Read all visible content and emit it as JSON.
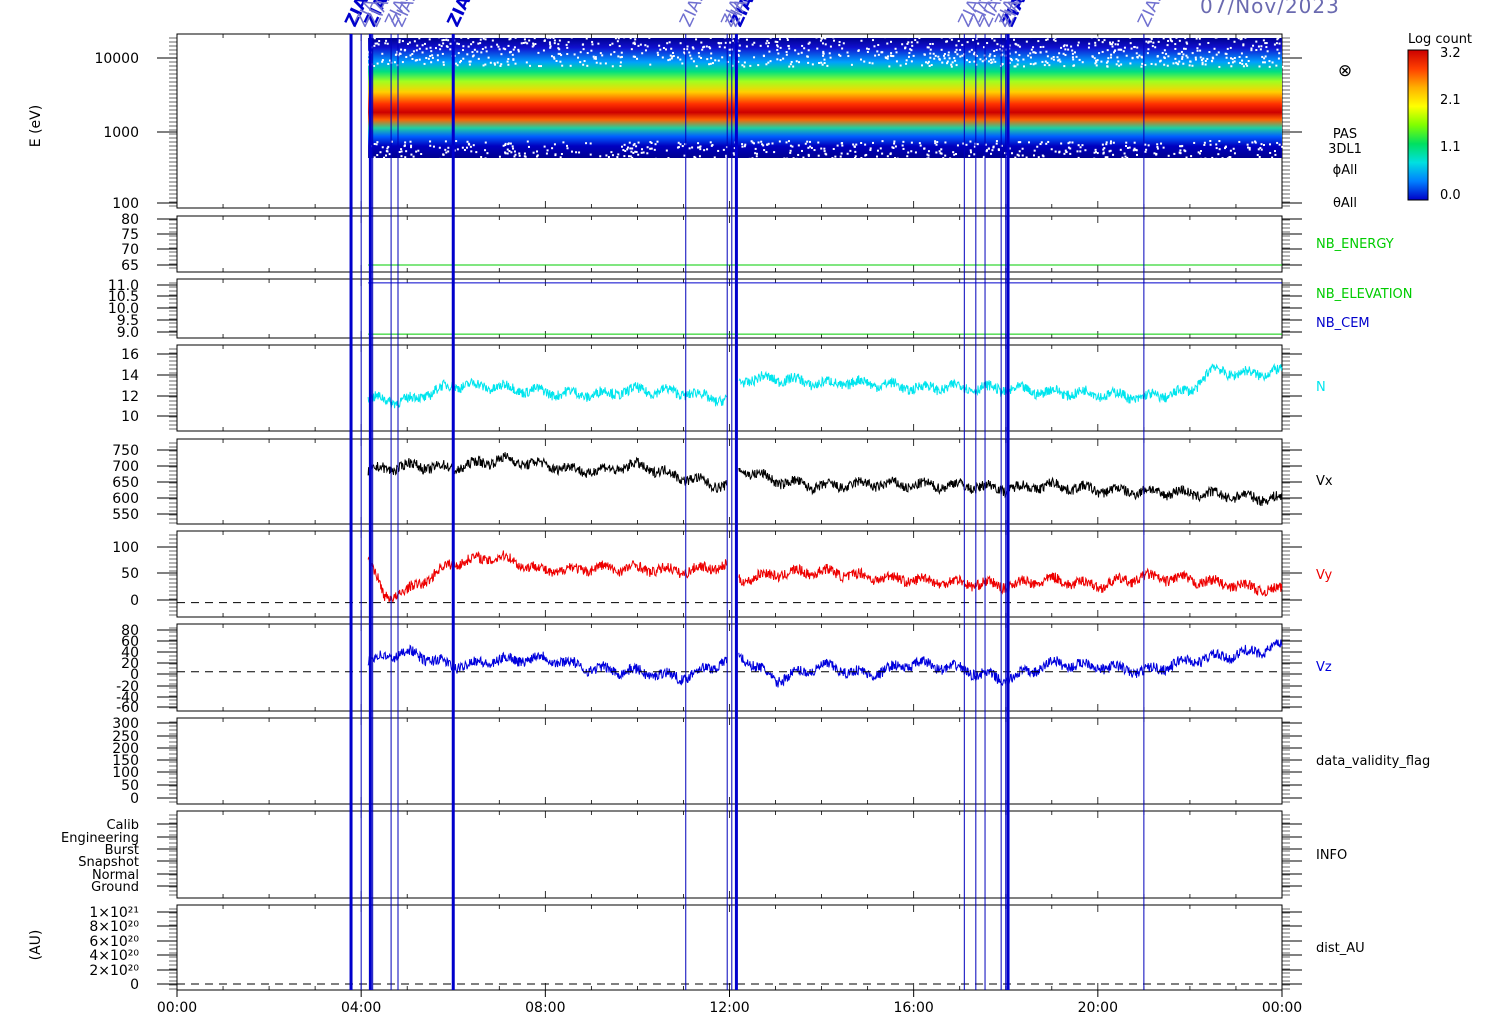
{
  "date_label": "07/Nov/2023",
  "colorbar": {
    "title": "Log count",
    "ticks": [
      "3.2",
      "2.1",
      "1.1",
      "0.0"
    ],
    "colors": [
      "#cc0000",
      "#ff4000",
      "#ffb000",
      "#ffff00",
      "#80ff00",
      "#00e060",
      "#00e0e0",
      "#0080ff",
      "#0000c8"
    ]
  },
  "x_ticks": [
    "00:00",
    "04:00",
    "08:00",
    "12:00",
    "16:00",
    "20:00",
    "00:00"
  ],
  "events": {
    "label": "ZIAS",
    "hours_thick": [
      3.78,
      4.2,
      6.0,
      12.15,
      18.05
    ],
    "hours_thin": [
      4.0,
      4.25,
      4.65,
      4.8,
      11.05,
      11.95,
      12.05,
      17.1,
      17.35,
      17.55,
      17.9,
      18.0,
      21.0
    ]
  },
  "chart_data": [
    {
      "type": "heatmap",
      "ylabel": "E (eV)",
      "y_ticks": [
        "10000",
        "1000",
        "100"
      ],
      "yscale": "log",
      "ylim": [
        100,
        20000
      ],
      "xlim_hours": [
        0,
        24
      ],
      "data_start_hour": 4.15,
      "peak_energy_ev": [
        2400,
        2600,
        2500,
        2000,
        1800
      ],
      "side_labels": [
        "PAS",
        "3DL1",
        "ϕAll",
        "θAll"
      ],
      "side_symbol": "⊗"
    },
    {
      "type": "line",
      "series": [
        {
          "name": "NB_ENERGY",
          "color": "#00cc00",
          "value": 63.5
        }
      ],
      "y_ticks": [
        "80",
        "75",
        "70",
        "65"
      ],
      "ylim": [
        61,
        81
      ]
    },
    {
      "type": "line",
      "series": [
        {
          "name": "NB_ELEVATION",
          "color": "#00cc00",
          "value": 9.0
        },
        {
          "name": "NB_CEM",
          "color": "#0000cc",
          "value": 11.0
        }
      ],
      "y_ticks": [
        "11.0",
        "10.5",
        "10.0",
        "9.5",
        "9.0"
      ],
      "ylim": [
        8.85,
        11.15
      ]
    },
    {
      "type": "line",
      "series": [
        {
          "name": "N",
          "color": "#00e5ee",
          "x": [
            4.15,
            5,
            6,
            7,
            8,
            9,
            10,
            11,
            11.95,
            12.2,
            13,
            14,
            15,
            16,
            17,
            18,
            19,
            20,
            21,
            22,
            22.5,
            23,
            24
          ],
          "y": [
            11.5,
            11.3,
            12.8,
            12.6,
            12.1,
            11.9,
            12.3,
            12.1,
            11.3,
            13.2,
            13.4,
            12.9,
            13.0,
            12.5,
            12.6,
            12.4,
            12.1,
            12.0,
            11.6,
            12.2,
            14.3,
            13.8,
            14.0
          ]
        }
      ],
      "y_ticks": [
        "16",
        "14",
        "12",
        "10"
      ],
      "ylim": [
        8.5,
        16.5
      ]
    },
    {
      "type": "line",
      "series": [
        {
          "name": "Vx",
          "color": "#000000",
          "x": [
            4.15,
            5,
            6,
            7,
            8,
            9,
            10,
            11,
            11.95,
            12.2,
            13,
            14,
            15,
            16,
            17,
            18,
            19,
            20,
            21,
            22,
            23,
            24
          ],
          "y": [
            670,
            690,
            680,
            710,
            690,
            670,
            690,
            650,
            620,
            680,
            640,
            620,
            630,
            625,
            625,
            615,
            625,
            610,
            605,
            600,
            590,
            580
          ]
        }
      ],
      "y_ticks": [
        "750",
        "700",
        "650",
        "600",
        "550"
      ],
      "ylim": [
        500,
        775
      ]
    },
    {
      "type": "line",
      "series": [
        {
          "name": "Vy",
          "color": "#ee0000",
          "x": [
            4.15,
            4.5,
            5,
            6,
            7,
            8,
            9,
            10,
            11,
            11.95,
            12.2,
            13,
            14,
            15,
            16,
            17,
            18,
            19,
            20,
            21,
            22,
            23,
            24
          ],
          "y": [
            80,
            10,
            20,
            70,
            80,
            55,
            60,
            60,
            55,
            65,
            40,
            50,
            55,
            45,
            40,
            35,
            30,
            40,
            30,
            45,
            40,
            30,
            20
          ]
        }
      ],
      "y_ticks": [
        "100",
        "50",
        "0"
      ],
      "ylim": [
        -25,
        125
      ]
    },
    {
      "type": "line",
      "series": [
        {
          "name": "Vz",
          "color": "#0000dd",
          "x": [
            4.15,
            5,
            6,
            7,
            8,
            9,
            10,
            11,
            11.95,
            12.2,
            13,
            14,
            15,
            16,
            17,
            18,
            19,
            20,
            21,
            22,
            23,
            24
          ],
          "y": [
            20,
            35,
            10,
            20,
            25,
            5,
            0,
            -10,
            20,
            30,
            -15,
            10,
            -5,
            15,
            5,
            -15,
            15,
            10,
            0,
            20,
            30,
            45
          ]
        }
      ],
      "y_ticks": [
        "80",
        "60",
        "40",
        "20",
        "0",
        "-20",
        "-40",
        "-60"
      ],
      "ylim": [
        -70,
        85
      ]
    },
    {
      "type": "line",
      "series": [
        {
          "name": "data_validity_flag"
        }
      ],
      "y_ticks": [
        "300",
        "250",
        "200",
        "150",
        "100",
        "50",
        "0"
      ],
      "ylim": [
        -10,
        320
      ]
    },
    {
      "type": "line",
      "series": [
        {
          "name": "INFO"
        }
      ],
      "y_ticks": [
        "Calib",
        "Engineering",
        "Burst",
        "Snapshot",
        "Normal",
        "Ground"
      ]
    },
    {
      "type": "line",
      "series": [
        {
          "name": "dist_AU"
        }
      ],
      "ylabel": "(AU)",
      "y_ticks": [
        "1×10²¹",
        "8×10²⁰",
        "6×10²⁰",
        "4×10²⁰",
        "2×10²⁰",
        "0"
      ]
    }
  ]
}
